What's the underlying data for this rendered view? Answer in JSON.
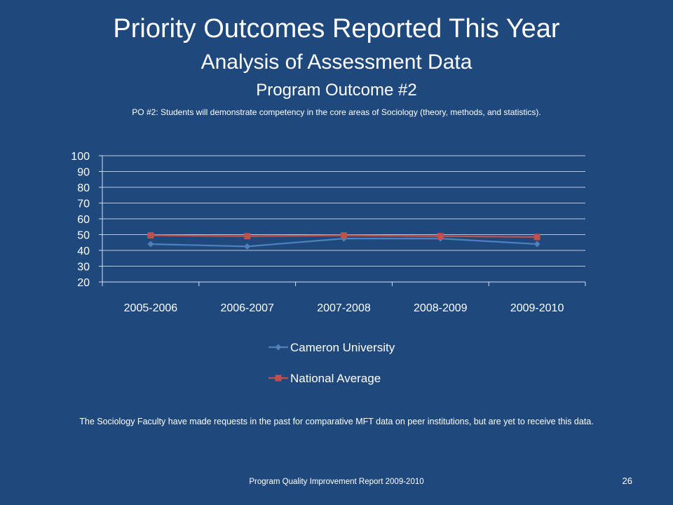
{
  "slide": {
    "title": "Priority Outcomes Reported This Year",
    "subtitle": "Analysis of Assessment Data",
    "outcome_heading": "Program Outcome #2",
    "po_statement": "PO #2: Students will demonstrate competency in the core areas of Sociology (theory, methods, and statistics).",
    "note": "The Sociology Faculty have made requests in the past for comparative MFT data on peer institutions, but are yet to receive this data.",
    "footer": "Program Quality Improvement Report 2009-2010",
    "page_number": "26"
  },
  "colors": {
    "background": "#1f497d",
    "grid": "#b8c7dc",
    "axis": "#d9e0ea",
    "series_cameron": "#4f81bd",
    "series_national": "#c0504d"
  },
  "chart_data": {
    "type": "line",
    "title": "",
    "xlabel": "",
    "ylabel": "",
    "categories": [
      "2005-2006",
      "2006-2007",
      "2007-2008",
      "2008-2009",
      "2009-2010"
    ],
    "ylim": [
      20,
      100
    ],
    "yticks": [
      20,
      30,
      40,
      50,
      60,
      70,
      80,
      90,
      100
    ],
    "grid": true,
    "legend_position": "bottom",
    "series": [
      {
        "name": "Cameron University",
        "marker": "diamond",
        "color": "#4f81bd",
        "values": [
          44,
          42.5,
          47.5,
          47.5,
          44
        ]
      },
      {
        "name": "National Average",
        "marker": "square",
        "color": "#c0504d",
        "values": [
          49.5,
          49,
          49.5,
          49,
          48.5
        ]
      }
    ]
  }
}
